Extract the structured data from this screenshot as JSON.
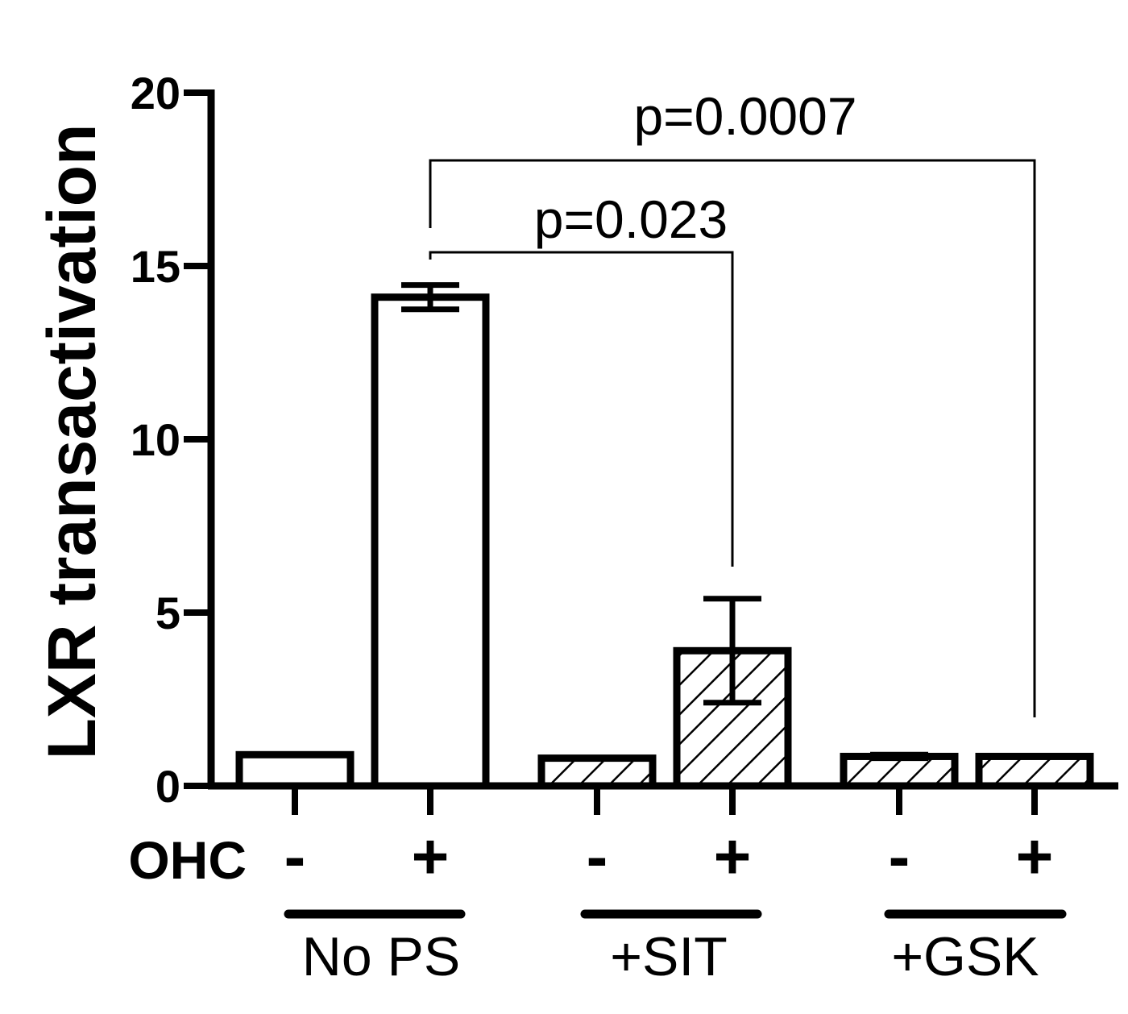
{
  "chart_data": {
    "type": "bar",
    "ylabel": "LXR transactivation",
    "ylim": [
      0,
      20
    ],
    "yticks": [
      0,
      5,
      10,
      15,
      20
    ],
    "row_label": "OHC",
    "groups": [
      {
        "name": "No PS",
        "pattern": "none"
      },
      {
        "name": "+SIT",
        "pattern": "hatched"
      },
      {
        "name": "+GSK",
        "pattern": "hatched"
      }
    ],
    "bars": [
      {
        "group": "No PS",
        "ohc": "-",
        "value": 0.9,
        "error": 0
      },
      {
        "group": "No PS",
        "ohc": "+",
        "value": 14.1,
        "error": 0.35
      },
      {
        "group": "+SIT",
        "ohc": "-",
        "value": 0.8,
        "error": 0
      },
      {
        "group": "+SIT",
        "ohc": "+",
        "value": 3.9,
        "error": 1.5
      },
      {
        "group": "+GSK",
        "ohc": "-",
        "value": 0.85,
        "error": 0.05
      },
      {
        "group": "+GSK",
        "ohc": "+",
        "value": 0.85,
        "error": 0
      }
    ],
    "comparisons": [
      {
        "from_bar": 1,
        "to_bar": 3,
        "label": "p=0.023"
      },
      {
        "from_bar": 1,
        "to_bar": 5,
        "label": "p=0.0007"
      }
    ],
    "colors": {
      "fill": "#ffffff",
      "stroke": "#000000"
    }
  }
}
